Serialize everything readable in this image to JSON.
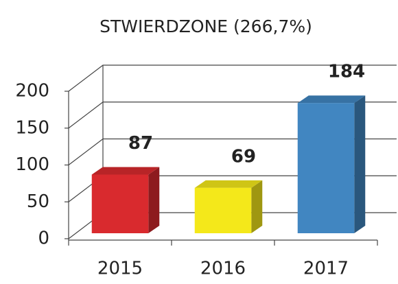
{
  "chart_data": {
    "type": "bar3d",
    "title": "STWIERDZONE (266,7%)",
    "categories": [
      "2015",
      "2016",
      "2017"
    ],
    "values": [
      87,
      69,
      184
    ],
    "colors": [
      "#d92a2e",
      "#f4e81a",
      "#4186c1"
    ],
    "ylim": [
      0,
      200
    ],
    "yticks": [
      0,
      50,
      100,
      150,
      200
    ],
    "grid": true
  }
}
